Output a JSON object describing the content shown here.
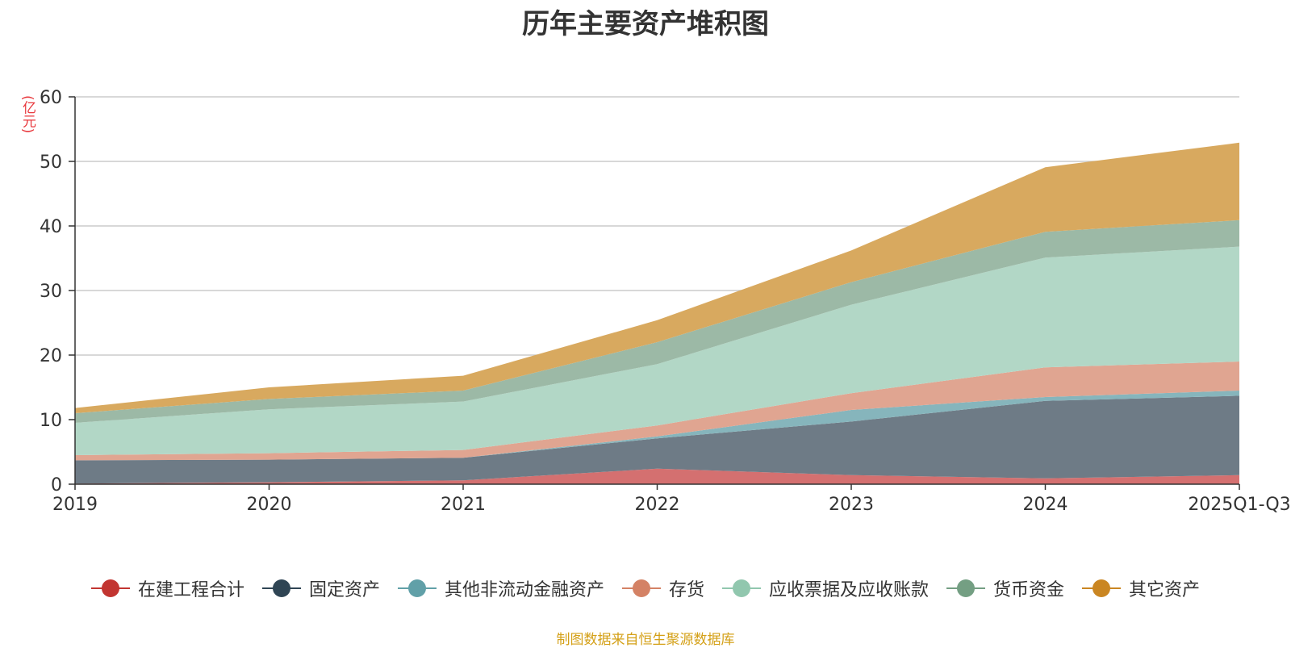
{
  "title": "历年主要资产堆积图",
  "unit_label": "(亿元)",
  "source": "制图数据来自恒生聚源数据库",
  "chart_data": {
    "type": "area",
    "stacked": true,
    "categories": [
      "2019",
      "2020",
      "2021",
      "2022",
      "2023",
      "2024",
      "2025Q1-Q3"
    ],
    "ylim": [
      0,
      60
    ],
    "yticks": [
      0,
      10,
      20,
      30,
      40,
      50,
      60
    ],
    "grid": true,
    "legend_position": "bottom",
    "series": [
      {
        "name": "在建工程合计",
        "color": "#c23531",
        "fill": "#d47070",
        "values": [
          0.1,
          0.3,
          0.6,
          2.4,
          1.4,
          0.9,
          1.4
        ]
      },
      {
        "name": "固定资产",
        "color": "#2f4554",
        "fill": "#6e7b86",
        "values": [
          3.6,
          3.5,
          3.5,
          4.7,
          8.3,
          12.0,
          12.3
        ]
      },
      {
        "name": "其他非流动金融资产",
        "color": "#61a0a8",
        "fill": "#86b5bc",
        "values": [
          0.0,
          0.0,
          0.0,
          0.3,
          1.8,
          0.6,
          0.8
        ]
      },
      {
        "name": "存货",
        "color": "#d48265",
        "fill": "#e0a591",
        "values": [
          0.8,
          1.0,
          1.2,
          1.7,
          2.6,
          4.6,
          4.5
        ]
      },
      {
        "name": "应收票据及应收账款",
        "color": "#91c7ae",
        "fill": "#b2d7c6",
        "values": [
          5.0,
          6.8,
          7.5,
          9.5,
          13.7,
          17.0,
          17.8
        ]
      },
      {
        "name": "货币资金",
        "color": "#749f83",
        "fill": "#9cb9a6",
        "values": [
          1.5,
          1.6,
          1.7,
          3.4,
          3.5,
          4.0,
          4.1
        ]
      },
      {
        "name": "其它资产",
        "color": "#ca8622",
        "fill": "#d8a95f",
        "values": [
          0.8,
          1.8,
          2.3,
          3.4,
          4.9,
          10.0,
          12.0
        ]
      }
    ]
  }
}
